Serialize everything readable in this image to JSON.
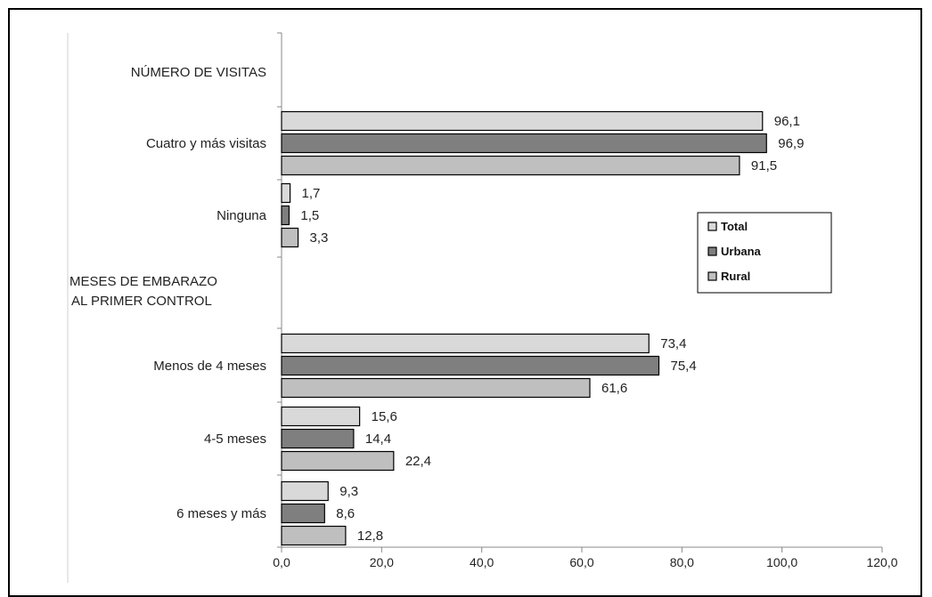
{
  "chart_data": {
    "type": "bar",
    "orientation": "horizontal",
    "groups": [
      {
        "title": [
          "NÚMERO DE VISITAS"
        ],
        "categories": [
          {
            "label": "Cuatro y más visitas",
            "values": [
              96.1,
              96.9,
              91.5
            ],
            "labels": [
              "96,1",
              "96,9",
              "91,5"
            ]
          },
          {
            "label": "Ninguna",
            "values": [
              1.7,
              1.5,
              3.3
            ],
            "labels": [
              "1,7",
              "1,5",
              "3,3"
            ]
          }
        ]
      },
      {
        "title": [
          "MESES DE EMBARAZO",
          "AL PRIMER CONTROL"
        ],
        "categories": [
          {
            "label": "Menos de 4 meses",
            "values": [
              73.4,
              75.4,
              61.6
            ],
            "labels": [
              "73,4",
              "75,4",
              "61,6"
            ]
          },
          {
            "label": "4-5 meses",
            "values": [
              15.6,
              14.4,
              22.4
            ],
            "labels": [
              "15,6",
              "14,4",
              "22,4"
            ]
          },
          {
            "label": "6 meses y más",
            "values": [
              9.3,
              8.6,
              12.8
            ],
            "labels": [
              "9,3",
              "8,6",
              "12,8"
            ]
          }
        ]
      }
    ],
    "series": [
      {
        "name": "Total",
        "color": "#d9d9d9"
      },
      {
        "name": "Urbana",
        "color": "#7f7f7f"
      },
      {
        "name": "Rural",
        "color": "#bfbfbf"
      }
    ],
    "x_ticks": [
      "0,0",
      "20,0",
      "40,0",
      "60,0",
      "80,0",
      "100,0",
      "120,0"
    ],
    "xlim": [
      0,
      120
    ],
    "legend_position": "right",
    "grid": false
  }
}
